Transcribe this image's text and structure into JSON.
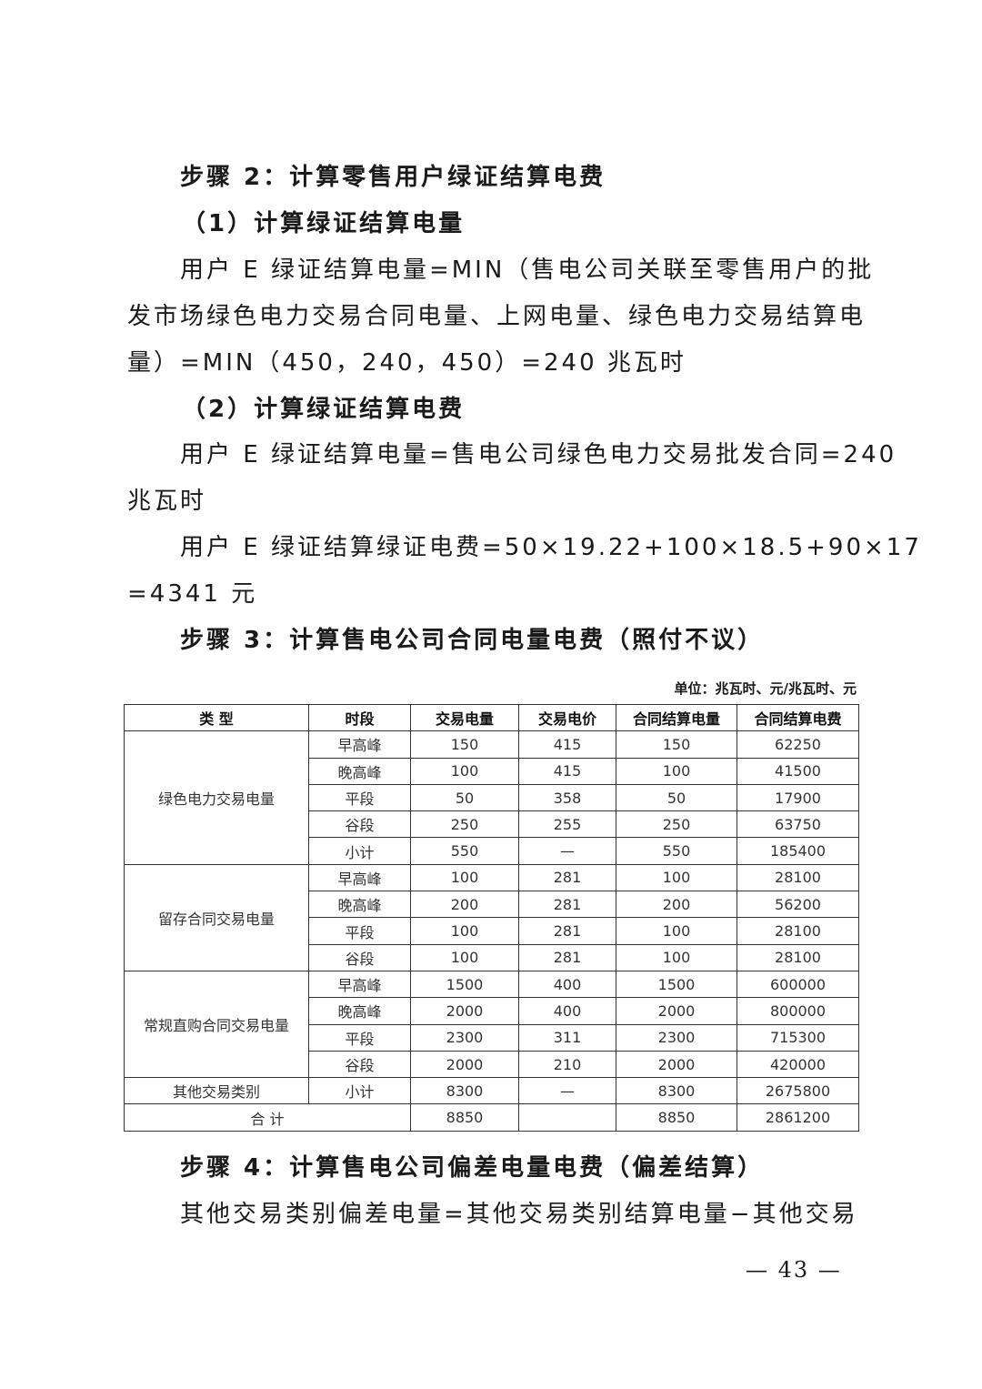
{
  "paragraphs": [
    "步骤 2：计算零售用户绿证结算电费",
    "（1）计算绿证结算电量",
    "用户 E 绿证结算电量=MIN（售电公司关联至零售用户的批",
    "发市场绿色电力交易合同电量、上网电量、绿色电力交易结算电",
    "量）=MIN（450，240，450）=240 兆瓦时",
    "（2）计算绿证结算电费",
    "用户 E 绿证结算电量=售电公司绿色电力交易批发合同=240",
    "兆瓦时",
    "用户 E 绿证结算绿证电费=50×19.22+100×18.5+90×17",
    "=4341 元",
    "步骤 3：计算售电公司合同电量电费（照付不议）"
  ],
  "table": {
    "unit": "单位：兆瓦时、元/兆瓦时、元",
    "headers": [
      "类 型",
      "时段",
      "交易电量",
      "交易电价",
      "合同结算电量",
      "合同结算电费"
    ],
    "groups": [
      {
        "type": "绿色电力交易电量",
        "rows": [
          [
            "早高峰",
            "150",
            "415",
            "150",
            "62250"
          ],
          [
            "晚高峰",
            "100",
            "415",
            "100",
            "41500"
          ],
          [
            "平段",
            "50",
            "358",
            "50",
            "17900"
          ],
          [
            "谷段",
            "250",
            "255",
            "250",
            "63750"
          ],
          [
            "小计",
            "550",
            "—",
            "550",
            "185400"
          ]
        ]
      },
      {
        "type": "留存合同交易电量",
        "rows": [
          [
            "早高峰",
            "100",
            "281",
            "100",
            "28100"
          ],
          [
            "晚高峰",
            "200",
            "281",
            "200",
            "56200"
          ],
          [
            "平段",
            "100",
            "281",
            "100",
            "28100"
          ],
          [
            "谷段",
            "100",
            "281",
            "100",
            "28100"
          ]
        ]
      },
      {
        "type": "常规直购合同交易电量",
        "rows": [
          [
            "早高峰",
            "1500",
            "400",
            "1500",
            "600000"
          ],
          [
            "晚高峰",
            "2000",
            "400",
            "2000",
            "800000"
          ],
          [
            "平段",
            "2300",
            "311",
            "2300",
            "715300"
          ],
          [
            "谷段",
            "2000",
            "210",
            "2000",
            "420000"
          ]
        ]
      },
      {
        "type": "其他交易类别",
        "rows": [
          [
            "小计",
            "8300",
            "—",
            "8300",
            "2675800"
          ]
        ]
      }
    ],
    "total": [
      "合 计",
      "8850",
      "",
      "8850",
      "2861200"
    ]
  },
  "after": [
    "步骤 4：计算售电公司偏差电量电费（偏差结算）",
    "其他交易类别偏差电量=其他交易类别结算电量−其他交易"
  ],
  "page_number": "— 43 —"
}
